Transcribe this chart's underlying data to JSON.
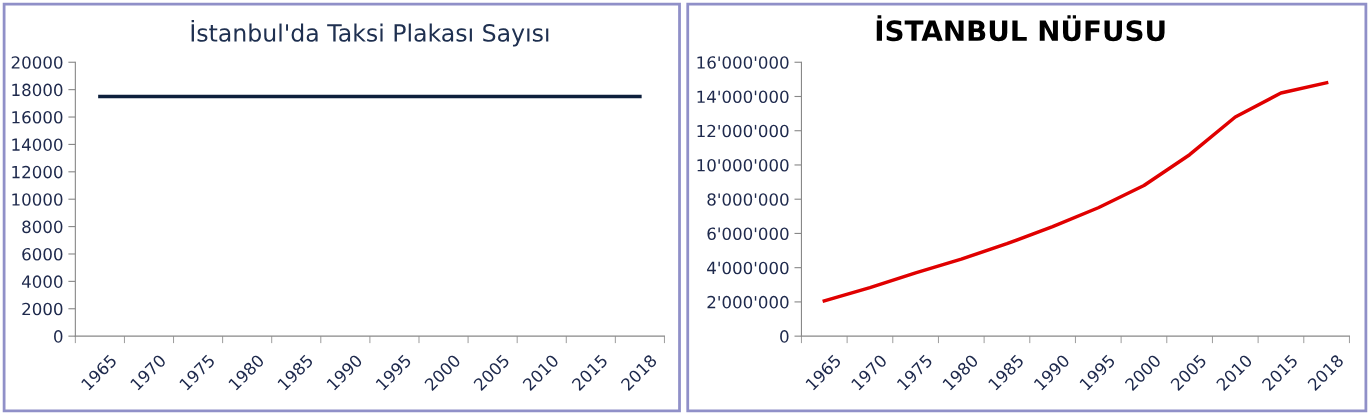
{
  "chart_data": [
    {
      "type": "line",
      "title": "İstanbul'da Taksi Plakası Sayısı",
      "categories": [
        "1965",
        "1970",
        "1975",
        "1980",
        "1985",
        "1990",
        "1995",
        "2000",
        "2005",
        "2010",
        "2015",
        "2018"
      ],
      "series": [
        {
          "color": "#0d1f3c",
          "values": [
            17500,
            17500,
            17500,
            17500,
            17500,
            17500,
            17500,
            17500,
            17500,
            17500,
            17500,
            17500
          ]
        }
      ],
      "ylim": [
        0,
        20000
      ],
      "yticks": [
        0,
        2000,
        4000,
        6000,
        8000,
        10000,
        12000,
        14000,
        16000,
        18000,
        20000
      ],
      "grid": false,
      "legend": false,
      "marker": "none",
      "line_style": "solid"
    },
    {
      "type": "line",
      "title": "İSTANBUL NÜFUSU",
      "categories": [
        "1965",
        "1970",
        "1975",
        "1980",
        "1985",
        "1990",
        "1995",
        "2000",
        "2005",
        "2010",
        "2015",
        "2018"
      ],
      "series": [
        {
          "color": "#e00000",
          "values": [
            2060000,
            2830000,
            3700000,
            4500000,
            5400000,
            6400000,
            7500000,
            8800000,
            10600000,
            12800000,
            14200000,
            14800000
          ]
        }
      ],
      "ylim": [
        0,
        16000000
      ],
      "yticks": [
        {
          "value": 0,
          "label": "0"
        },
        {
          "value": 2000000,
          "label": "2'000'000"
        },
        {
          "value": 4000000,
          "label": "4'000'000"
        },
        {
          "value": 6000000,
          "label": "6'000'000"
        },
        {
          "value": 8000000,
          "label": "8'000'000"
        },
        {
          "value": 10000000,
          "label": "10'000'000"
        },
        {
          "value": 12000000,
          "label": "12'000'000"
        },
        {
          "value": 14000000,
          "label": "14'000'000"
        },
        {
          "value": 16000000,
          "label": "16'000'000"
        }
      ],
      "grid": false,
      "legend": false,
      "marker": "none",
      "line_style": "solid"
    }
  ]
}
